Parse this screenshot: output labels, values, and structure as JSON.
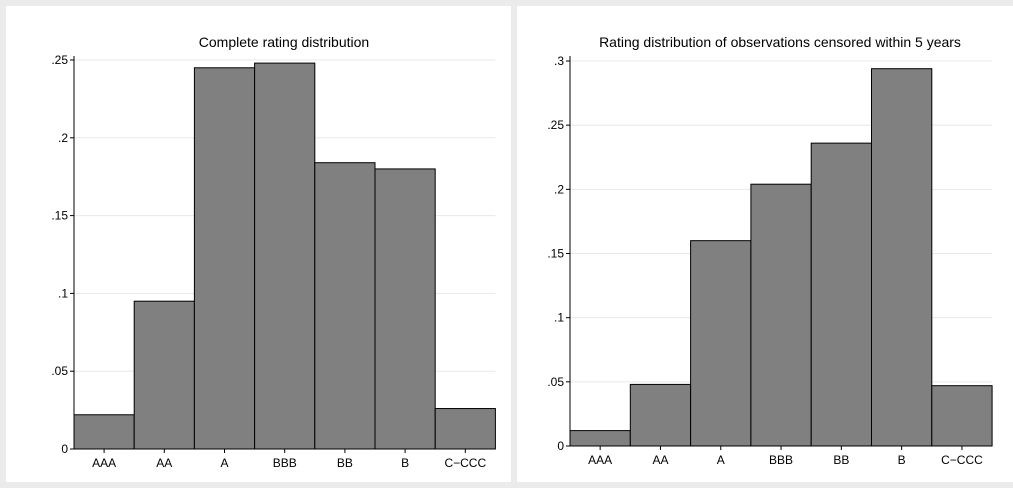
{
  "chart_data": [
    {
      "type": "bar",
      "title": "Complete rating distribution",
      "categories": [
        "AAA",
        "AA",
        "A",
        "BBB",
        "BB",
        "B",
        "C−CCC"
      ],
      "values": [
        0.022,
        0.095,
        0.245,
        0.248,
        0.184,
        0.18,
        0.026
      ],
      "yticks": [
        0,
        0.05,
        0.1,
        0.15,
        0.2,
        0.25
      ],
      "ytick_labels": [
        "0",
        ".05",
        ".1",
        ".15",
        ".2",
        ".25"
      ],
      "ylim": [
        0,
        0.25
      ],
      "grid": true,
      "bar_color": "#808080"
    },
    {
      "type": "bar",
      "title": "Rating distribution of observations censored within 5 years",
      "categories": [
        "AAA",
        "AA",
        "A",
        "BBB",
        "BB",
        "B",
        "C−CCC"
      ],
      "values": [
        0.012,
        0.048,
        0.16,
        0.204,
        0.236,
        0.294,
        0.047
      ],
      "yticks": [
        0,
        0.05,
        0.1,
        0.15,
        0.2,
        0.25,
        0.3
      ],
      "ytick_labels": [
        "0",
        ".05",
        ".1",
        ".15",
        ".2",
        ".25",
        ".3"
      ],
      "ylim": [
        0,
        0.3
      ],
      "grid": true,
      "bar_color": "#808080"
    }
  ]
}
